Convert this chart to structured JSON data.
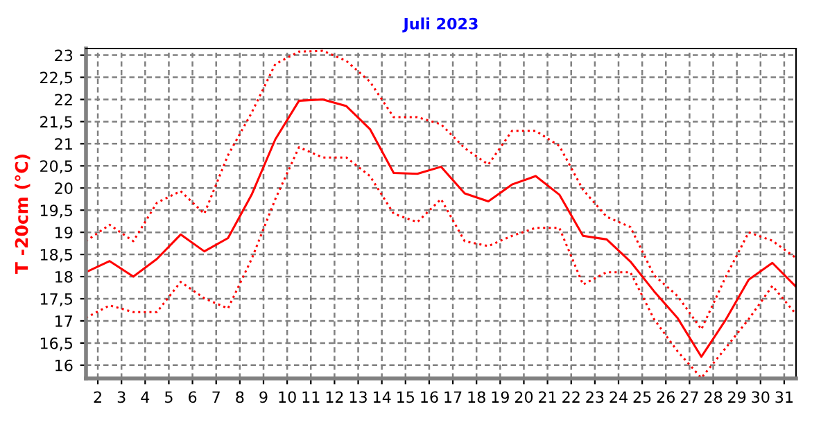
{
  "chart_data": {
    "type": "line",
    "title": "Juli 2023",
    "ylabel": "T -20cm (°C)",
    "x": [
      1.5,
      2.5,
      3.5,
      4.5,
      5.5,
      6.5,
      7.5,
      8.5,
      9.5,
      10.5,
      11.5,
      12.5,
      13.5,
      14.5,
      15.5,
      16.5,
      17.5,
      18.5,
      19.5,
      20.5,
      21.5,
      22.5,
      23.5,
      24.5,
      25.5,
      26.5,
      27.5,
      28.5,
      29.5,
      30.5,
      31.5
    ],
    "series": [
      {
        "color": "#ff0000",
        "line_style": "dotted",
        "values": [
          18.8,
          19.17,
          18.8,
          19.67,
          19.93,
          19.42,
          20.74,
          21.7,
          22.8,
          23.08,
          23.1,
          22.87,
          22.4,
          21.6,
          21.6,
          21.44,
          20.9,
          20.53,
          21.29,
          21.29,
          20.95,
          19.96,
          19.35,
          19.12,
          18.03,
          17.56,
          16.81,
          17.96,
          19.0,
          18.81,
          18.42
        ]
      },
      {
        "color": "#ff0000",
        "line_style": "solid",
        "values": [
          18.1,
          18.35,
          18.0,
          18.4,
          18.95,
          18.57,
          18.87,
          19.85,
          21.1,
          21.97,
          22.0,
          21.85,
          21.33,
          20.34,
          20.32,
          20.48,
          19.88,
          19.7,
          20.08,
          20.27,
          19.85,
          18.92,
          18.84,
          18.34,
          17.67,
          17.06,
          16.19,
          17.0,
          17.93,
          18.31,
          17.77
        ]
      },
      {
        "color": "#ff0000",
        "line_style": "dotted",
        "values": [
          17.07,
          17.35,
          17.2,
          17.2,
          17.88,
          17.51,
          17.28,
          18.4,
          19.75,
          20.92,
          20.69,
          20.69,
          20.27,
          19.42,
          19.23,
          19.75,
          18.8,
          18.69,
          18.92,
          19.1,
          19.1,
          17.82,
          18.1,
          18.1,
          17.04,
          16.31,
          15.71,
          16.37,
          17.04,
          17.79,
          17.15
        ]
      }
    ],
    "xlim": [
      1.5,
      31.5
    ],
    "xticks": [
      2,
      3,
      4,
      5,
      6,
      7,
      8,
      9,
      10,
      11,
      12,
      13,
      14,
      15,
      16,
      17,
      18,
      19,
      20,
      21,
      22,
      23,
      24,
      25,
      26,
      27,
      28,
      29,
      30,
      31
    ],
    "ylim": [
      15.7,
      23.15
    ],
    "yticks": [
      16,
      {
        "value": 16.5,
        "label": "16,5"
      },
      17,
      {
        "value": 17.5,
        "label": "17,5"
      },
      18,
      {
        "value": 18.5,
        "label": "18,5"
      },
      19,
      {
        "value": 19.5,
        "label": "19,5"
      },
      20,
      {
        "value": 20.5,
        "label": "20,5"
      },
      21,
      {
        "value": 21.5,
        "label": "21,5"
      },
      22,
      {
        "value": 22.5,
        "label": "22,5"
      },
      23
    ],
    "grid": true,
    "marker": "none"
  }
}
